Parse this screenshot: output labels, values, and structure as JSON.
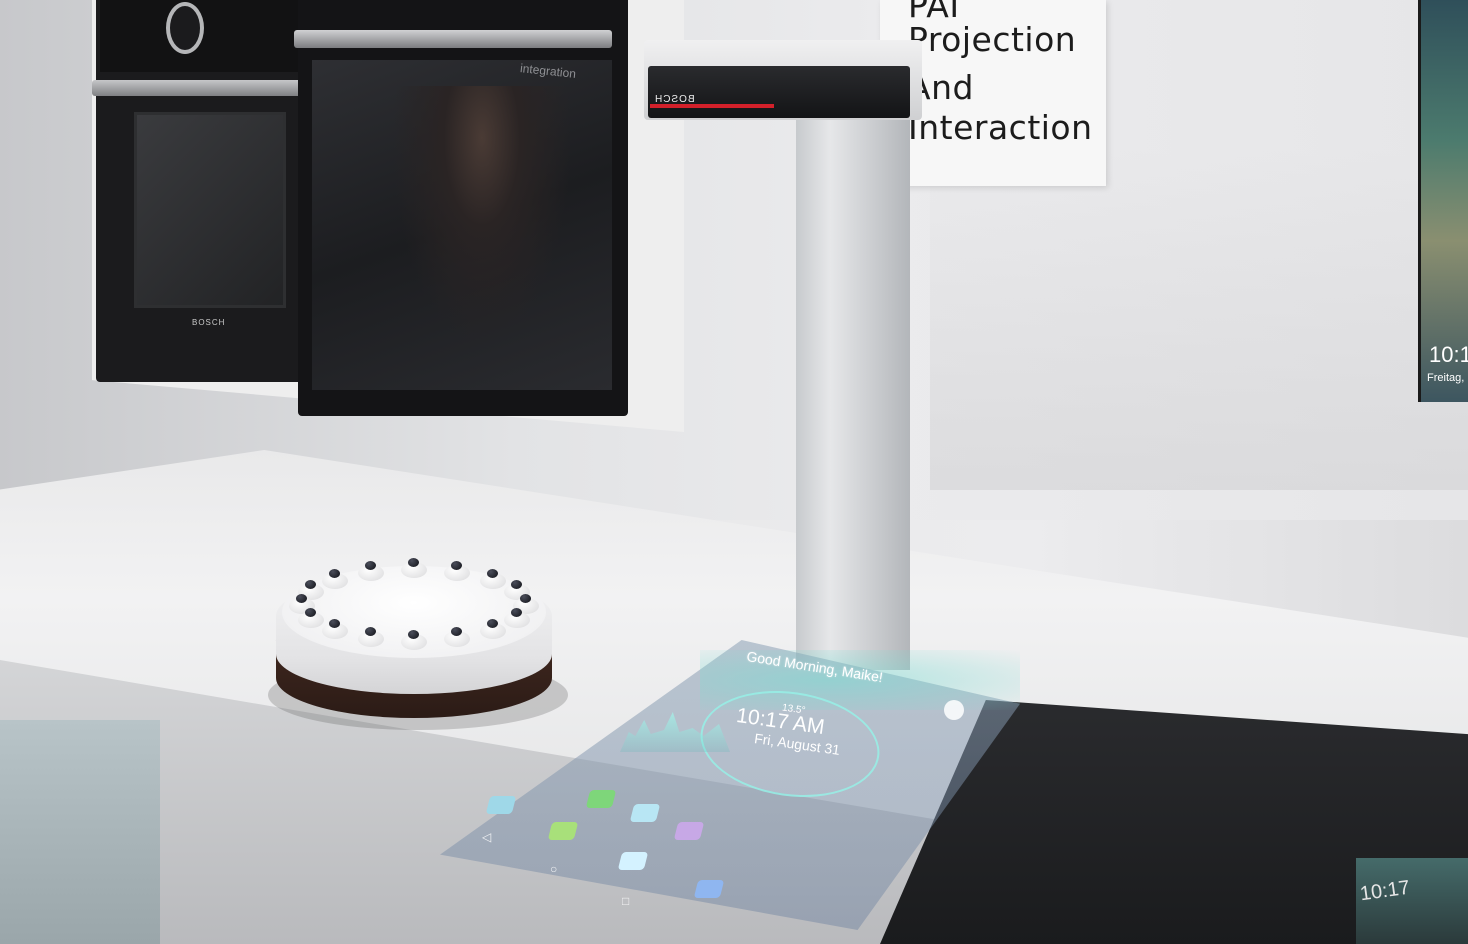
{
  "sign": {
    "lines": [
      "PAI",
      "Projection",
      "And",
      "Interaction"
    ]
  },
  "wall_tablet": {
    "time": "10:1",
    "date": "Freitag,"
  },
  "oven": {
    "brand": "BOSCH",
    "reflection_text": "integration"
  },
  "projector": {
    "label": "BOSCH"
  },
  "projected_ui": {
    "greeting": "Good Morning, Maike!",
    "temperature": "13.5°",
    "time": "10:17 AM",
    "date": "Fri, August 31"
  },
  "cooktop": {
    "time": "10:17"
  },
  "colors": {
    "accent_teal": "#7fe0d4",
    "brand_red": "#d3202a"
  }
}
